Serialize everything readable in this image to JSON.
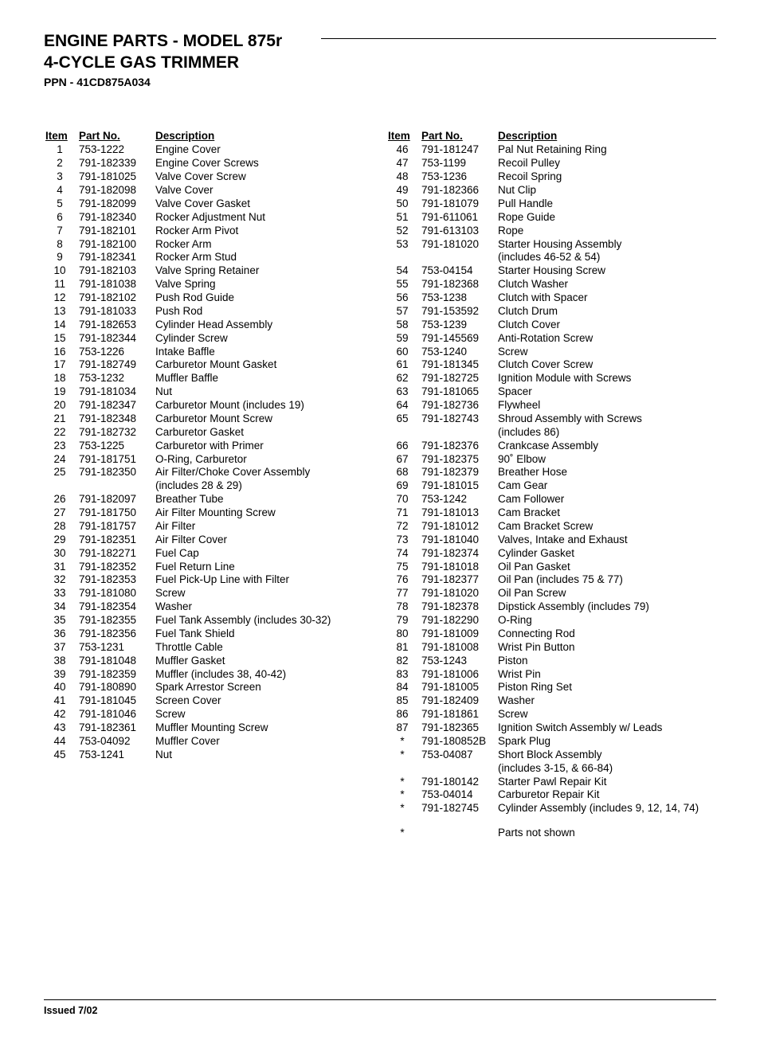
{
  "header": {
    "title_line1": "ENGINE PARTS - MODEL 875r",
    "title_line2": "4-CYCLE GAS TRIMMER",
    "subtitle": "PPN - 41CD875A034"
  },
  "colheaders": {
    "item": "Item",
    "part": "Part No.",
    "desc": "Description"
  },
  "left": [
    {
      "i": "1",
      "p": "753-1222",
      "d": "Engine Cover"
    },
    {
      "i": "2",
      "p": "791-182339",
      "d": "Engine Cover Screws"
    },
    {
      "i": "3",
      "p": "791-181025",
      "d": "Valve Cover Screw"
    },
    {
      "i": "4",
      "p": "791-182098",
      "d": "Valve Cover"
    },
    {
      "i": "5",
      "p": "791-182099",
      "d": "Valve Cover Gasket"
    },
    {
      "i": "6",
      "p": "791-182340",
      "d": "Rocker Adjustment Nut"
    },
    {
      "i": "7",
      "p": "791-182101",
      "d": "Rocker Arm Pivot"
    },
    {
      "i": "8",
      "p": "791-182100",
      "d": "Rocker Arm"
    },
    {
      "i": "9",
      "p": "791-182341",
      "d": "Rocker Arm Stud"
    },
    {
      "i": "10",
      "p": "791-182103",
      "d": "Valve Spring Retainer"
    },
    {
      "i": "11",
      "p": "791-181038",
      "d": "Valve Spring"
    },
    {
      "i": "12",
      "p": "791-182102",
      "d": "Push Rod Guide"
    },
    {
      "i": "13",
      "p": "791-181033",
      "d": "Push Rod"
    },
    {
      "i": "14",
      "p": "791-182653",
      "d": "Cylinder Head Assembly"
    },
    {
      "i": "15",
      "p": "791-182344",
      "d": "Cylinder Screw"
    },
    {
      "i": "16",
      "p": "753-1226",
      "d": "Intake Baffle"
    },
    {
      "i": "17",
      "p": "791-182749",
      "d": "Carburetor Mount Gasket"
    },
    {
      "i": "18",
      "p": "753-1232",
      "d": "Muffler Baffle"
    },
    {
      "i": "19",
      "p": "791-181034",
      "d": "Nut"
    },
    {
      "i": "20",
      "p": "791-182347",
      "d": "Carburetor Mount (includes 19)"
    },
    {
      "i": "21",
      "p": "791-182348",
      "d": "Carburetor Mount Screw"
    },
    {
      "i": "22",
      "p": "791-182732",
      "d": "Carburetor Gasket"
    },
    {
      "i": "23",
      "p": "753-1225",
      "d": "Carburetor with Primer"
    },
    {
      "i": "24",
      "p": "791-181751",
      "d": "O-Ring, Carburetor"
    },
    {
      "i": "25",
      "p": "791-182350",
      "d": "Air Filter/Choke Cover Assembly"
    },
    {
      "i": "",
      "p": "",
      "d": "(includes 28 & 29)"
    },
    {
      "i": "26",
      "p": "791-182097",
      "d": "Breather Tube"
    },
    {
      "i": "27",
      "p": "791-181750",
      "d": "Air Filter Mounting Screw"
    },
    {
      "i": "28",
      "p": "791-181757",
      "d": "Air Filter"
    },
    {
      "i": "29",
      "p": "791-182351",
      "d": "Air Filter Cover"
    },
    {
      "i": "30",
      "p": "791-182271",
      "d": "Fuel Cap"
    },
    {
      "i": "31",
      "p": "791-182352",
      "d": "Fuel Return Line"
    },
    {
      "i": "32",
      "p": "791-182353",
      "d": "Fuel Pick-Up Line with Filter"
    },
    {
      "i": "33",
      "p": "791-181080",
      "d": "Screw"
    },
    {
      "i": "34",
      "p": "791-182354",
      "d": "Washer"
    },
    {
      "i": "35",
      "p": "791-182355",
      "d": "Fuel Tank Assembly (includes 30-32)"
    },
    {
      "i": "36",
      "p": "791-182356",
      "d": "Fuel Tank Shield"
    },
    {
      "i": "37",
      "p": "753-1231",
      "d": "Throttle Cable"
    },
    {
      "i": "38",
      "p": "791-181048",
      "d": "Muffler Gasket"
    },
    {
      "i": "39",
      "p": "791-182359",
      "d": "Muffler (includes 38, 40-42)"
    },
    {
      "i": "40",
      "p": "791-180890",
      "d": "Spark Arrestor Screen"
    },
    {
      "i": "41",
      "p": "791-181045",
      "d": "Screen Cover"
    },
    {
      "i": "42",
      "p": "791-181046",
      "d": "Screw"
    },
    {
      "i": "43",
      "p": "791-182361",
      "d": "Muffler Mounting Screw"
    },
    {
      "i": "44",
      "p": "753-04092",
      "d": "Muffler Cover"
    },
    {
      "i": "45",
      "p": "753-1241",
      "d": "Nut"
    }
  ],
  "right": [
    {
      "i": "46",
      "p": "791-181247",
      "d": "Pal Nut Retaining Ring"
    },
    {
      "i": "47",
      "p": "753-1199",
      "d": "Recoil Pulley"
    },
    {
      "i": "48",
      "p": "753-1236",
      "d": "Recoil Spring"
    },
    {
      "i": "49",
      "p": "791-182366",
      "d": "Nut Clip"
    },
    {
      "i": "50",
      "p": "791-181079",
      "d": "Pull Handle"
    },
    {
      "i": "51",
      "p": "791-611061",
      "d": "Rope Guide"
    },
    {
      "i": "52",
      "p": "791-613103",
      "d": "Rope"
    },
    {
      "i": "53",
      "p": "791-181020",
      "d": "Starter Housing Assembly"
    },
    {
      "i": "",
      "p": "",
      "d": "(includes 46-52 & 54)"
    },
    {
      "i": "54",
      "p": "753-04154",
      "d": "Starter Housing Screw"
    },
    {
      "i": "55",
      "p": "791-182368",
      "d": "Clutch Washer"
    },
    {
      "i": "56",
      "p": "753-1238",
      "d": "Clutch with Spacer"
    },
    {
      "i": "57",
      "p": "791-153592",
      "d": "Clutch Drum"
    },
    {
      "i": "58",
      "p": "753-1239",
      "d": "Clutch Cover"
    },
    {
      "i": "59",
      "p": "791-145569",
      "d": "Anti-Rotation Screw"
    },
    {
      "i": "60",
      "p": "753-1240",
      "d": "Screw"
    },
    {
      "i": "61",
      "p": "791-181345",
      "d": "Clutch Cover Screw"
    },
    {
      "i": "62",
      "p": "791-182725",
      "d": "Ignition Module with Screws"
    },
    {
      "i": "63",
      "p": "791-181065",
      "d": "Spacer"
    },
    {
      "i": "64",
      "p": "791-182736",
      "d": "Flywheel"
    },
    {
      "i": "65",
      "p": "791-182743",
      "d": "Shroud Assembly with Screws"
    },
    {
      "i": "",
      "p": "",
      "d": "(includes 86)"
    },
    {
      "i": "66",
      "p": "791-182376",
      "d": "Crankcase Assembly"
    },
    {
      "i": "67",
      "p": "791-182375",
      "d": "90˚ Elbow"
    },
    {
      "i": "68",
      "p": "791-182379",
      "d": "Breather Hose"
    },
    {
      "i": "69",
      "p": "791-181015",
      "d": "Cam Gear"
    },
    {
      "i": "70",
      "p": "753-1242",
      "d": "Cam Follower"
    },
    {
      "i": "71",
      "p": "791-181013",
      "d": "Cam Bracket"
    },
    {
      "i": "72",
      "p": "791-181012",
      "d": "Cam Bracket Screw"
    },
    {
      "i": "73",
      "p": "791-181040",
      "d": "Valves, Intake and Exhaust"
    },
    {
      "i": "74",
      "p": "791-182374",
      "d": "Cylinder Gasket"
    },
    {
      "i": "75",
      "p": "791-181018",
      "d": "Oil Pan Gasket"
    },
    {
      "i": "76",
      "p": "791-182377",
      "d": "Oil Pan (includes 75 & 77)"
    },
    {
      "i": "77",
      "p": "791-181020",
      "d": "Oil Pan Screw"
    },
    {
      "i": "78",
      "p": "791-182378",
      "d": "Dipstick Assembly (includes 79)"
    },
    {
      "i": "79",
      "p": "791-182290",
      "d": "O-Ring"
    },
    {
      "i": "80",
      "p": "791-181009",
      "d": "Connecting Rod"
    },
    {
      "i": "81",
      "p": "791-181008",
      "d": "Wrist Pin Button"
    },
    {
      "i": "82",
      "p": "753-1243",
      "d": "Piston"
    },
    {
      "i": "83",
      "p": "791-181006",
      "d": "Wrist Pin"
    },
    {
      "i": "84",
      "p": "791-181005",
      "d": "Piston Ring Set"
    },
    {
      "i": "85",
      "p": "791-182409",
      "d": "Washer"
    },
    {
      "i": "86",
      "p": "791-181861",
      "d": "Screw"
    },
    {
      "i": "87",
      "p": "791-182365",
      "d": "Ignition Switch Assembly w/ Leads"
    },
    {
      "i": "*",
      "p": "791-180852B",
      "d": "Spark Plug"
    },
    {
      "i": "*",
      "p": "753-04087",
      "d": "Short Block Assembly"
    },
    {
      "i": "",
      "p": "",
      "d": "(includes 3-15, & 66-84)"
    },
    {
      "i": "*",
      "p": "791-180142",
      "d": "Starter Pawl Repair Kit"
    },
    {
      "i": "*",
      "p": "753-04014",
      "d": "Carburetor Repair Kit"
    },
    {
      "i": "*",
      "p": "791-182745",
      "d": "Cylinder Assembly (includes 9, 12, 14, 74)"
    }
  ],
  "note": {
    "i": "*",
    "d": "Parts not shown"
  },
  "footer": "Issued 7/02"
}
